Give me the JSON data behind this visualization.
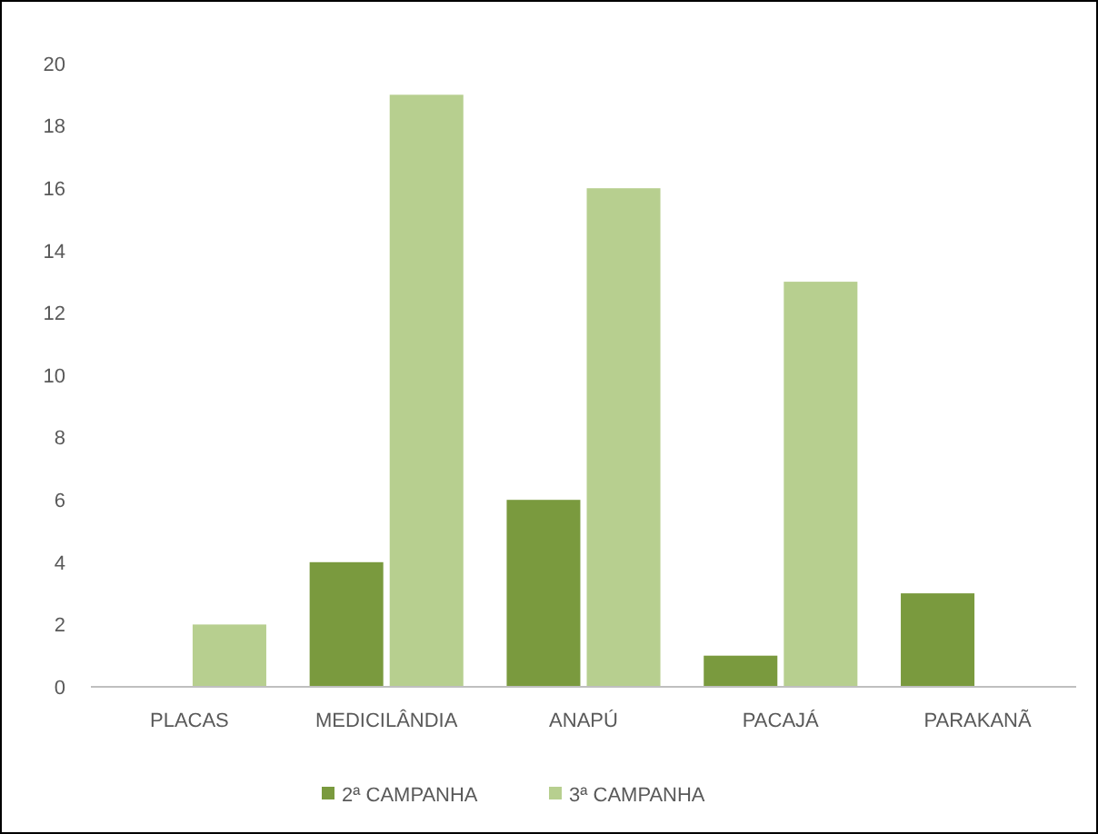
{
  "chart_data": {
    "type": "bar",
    "categories": [
      "PLACAS",
      "MEDICILÂNDIA",
      "ANAPÚ",
      "PACAJÁ",
      "PARAKANÃ"
    ],
    "series": [
      {
        "name": "2ª CAMPANHA",
        "color": "#7a9a3e",
        "values": [
          0,
          4,
          6,
          1,
          3
        ]
      },
      {
        "name": "3ª CAMPANHA",
        "color": "#b7cf8f",
        "values": [
          2,
          19,
          16,
          13,
          0
        ]
      }
    ],
    "ylim": [
      0,
      20
    ],
    "yticks": [
      0,
      2,
      4,
      6,
      8,
      10,
      12,
      14,
      16,
      18,
      20
    ],
    "grid": false,
    "legend": "bottom"
  }
}
